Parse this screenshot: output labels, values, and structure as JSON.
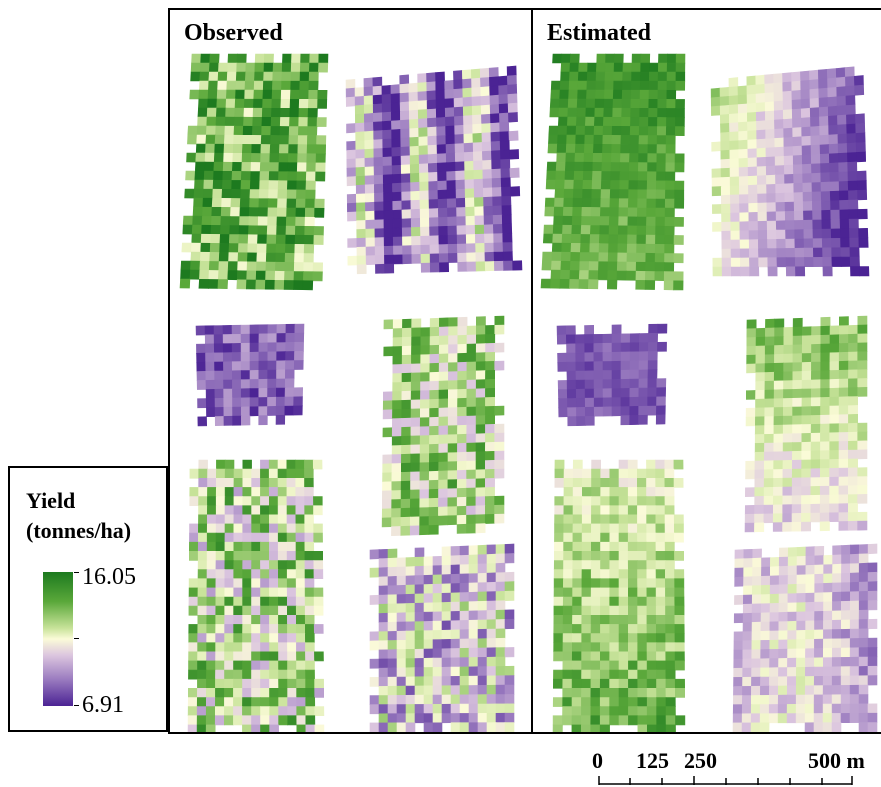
{
  "panels": [
    {
      "title": "Observed"
    },
    {
      "title": "Estimated"
    }
  ],
  "legend": {
    "title_line1": "Yield",
    "title_line2": "(tonnes/ha)",
    "max_value": "16.05",
    "min_value": "6.91",
    "colors": [
      "#1d7a1f",
      "#fbfbd8",
      "#4b2394"
    ]
  },
  "scalebar": {
    "labels": [
      "0",
      "125",
      "250",
      "500 m"
    ]
  }
}
